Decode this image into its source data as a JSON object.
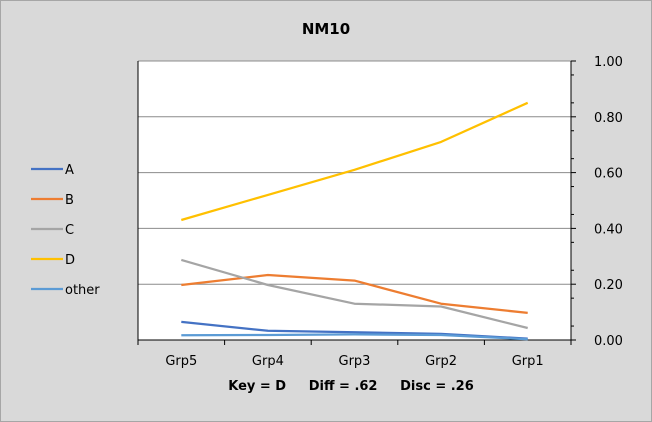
{
  "chart_data": {
    "type": "line",
    "title": "NM10",
    "categories": [
      "Grp5",
      "Grp4",
      "Grp3",
      "Grp2",
      "Grp1"
    ],
    "ylim": [
      0,
      1
    ],
    "yticks": [
      "0.00",
      "0.20",
      "0.40",
      "0.60",
      "0.80",
      "1.00"
    ],
    "y_axis_side": "right",
    "grid": true,
    "legend_position": "left",
    "stats": "Key = D     Diff = .62     Disc = .26",
    "series": [
      {
        "name": "A",
        "color": "#4472c4",
        "values": [
          0.065,
          0.033,
          0.028,
          0.022,
          0.005
        ]
      },
      {
        "name": "B",
        "color": "#ed7d31",
        "values": [
          0.197,
          0.233,
          0.213,
          0.13,
          0.097
        ]
      },
      {
        "name": "C",
        "color": "#a5a5a5",
        "values": [
          0.287,
          0.197,
          0.13,
          0.12,
          0.043
        ]
      },
      {
        "name": "D",
        "color": "#ffc000",
        "values": [
          0.43,
          0.52,
          0.61,
          0.71,
          0.85
        ]
      },
      {
        "name": "other",
        "color": "#5b9bd5",
        "values": [
          0.017,
          0.018,
          0.02,
          0.018,
          0.003
        ]
      }
    ]
  }
}
